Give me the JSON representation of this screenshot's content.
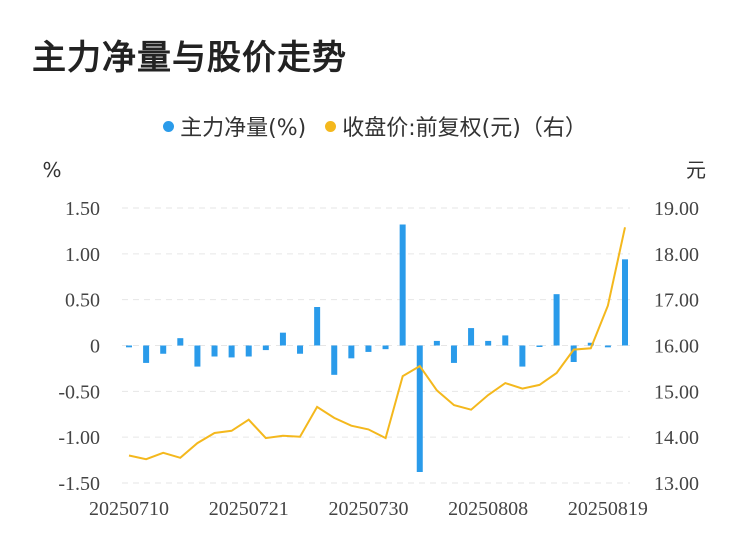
{
  "title": "主力净量与股价走势",
  "chart_data": {
    "type": "bar+line",
    "legend": [
      {
        "label": "主力净量(%)",
        "color": "#2a9bea"
      },
      {
        "label": "收盘价:前复权(元)（右）",
        "color": "#f4b81d"
      }
    ],
    "left_axis": {
      "unit": "%",
      "ticks": [
        "1.50",
        "1.00",
        "0.50",
        "0",
        "-0.50",
        "-1.00",
        "-1.50"
      ],
      "range": [
        -1.5,
        1.5
      ]
    },
    "right_axis": {
      "unit": "元",
      "ticks": [
        "19.00",
        "18.00",
        "17.00",
        "16.00",
        "15.00",
        "14.00",
        "13.00"
      ],
      "range": [
        13,
        19
      ]
    },
    "x_labels": [
      {
        "index": 0,
        "label": "20250710"
      },
      {
        "index": 7,
        "label": "20250721"
      },
      {
        "index": 14,
        "label": "20250730"
      },
      {
        "index": 21,
        "label": "20250808"
      },
      {
        "index": 28,
        "label": "20250819"
      }
    ],
    "series": [
      {
        "name": "主力净量(%)",
        "type": "bar",
        "color": "#2a9bea",
        "values": [
          -0.02,
          -0.19,
          -0.09,
          0.08,
          -0.23,
          -0.12,
          -0.13,
          -0.12,
          -0.05,
          0.14,
          -0.09,
          0.42,
          -0.32,
          -0.14,
          -0.07,
          -0.04,
          1.32,
          -1.38,
          0.05,
          -0.19,
          0.19,
          0.05,
          0.11,
          -0.23,
          -0.01,
          0.56,
          -0.18,
          0.03,
          -0.02,
          0.94
        ]
      },
      {
        "name": "收盘价:前复权(元)（右）",
        "type": "line",
        "color": "#f4b81d",
        "values": [
          13.6,
          13.52,
          13.66,
          13.55,
          13.87,
          14.09,
          14.14,
          14.38,
          13.98,
          14.03,
          14.01,
          14.66,
          14.42,
          14.25,
          14.17,
          13.98,
          15.33,
          15.55,
          15.02,
          14.7,
          14.6,
          14.92,
          15.18,
          15.06,
          15.14,
          15.4,
          15.91,
          15.94,
          16.87,
          18.58
        ]
      }
    ]
  }
}
